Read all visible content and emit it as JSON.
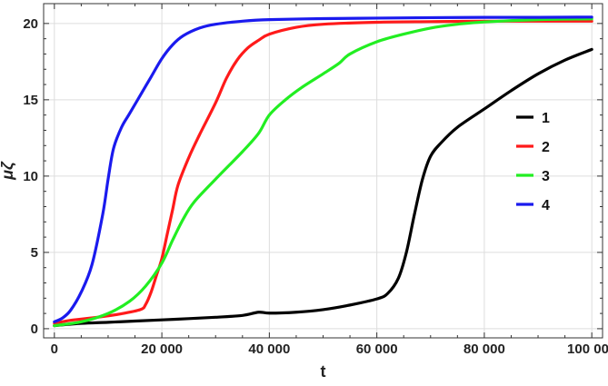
{
  "chart_data": {
    "type": "line",
    "title": "",
    "xlabel": "t",
    "ylabel": "μζ",
    "xlim": [
      -2000,
      102000
    ],
    "ylim": [
      -0.6,
      21.3
    ],
    "xticks": [
      0,
      20000,
      40000,
      60000,
      80000,
      100000
    ],
    "xtick_labels": [
      "0",
      "20 000",
      "40 000",
      "60 000",
      "80 000",
      "100 000"
    ],
    "yticks": [
      0,
      5,
      10,
      15,
      20
    ],
    "ytick_labels": [
      "0",
      "5",
      "10",
      "15",
      "20"
    ],
    "grid": true,
    "legend_position": "center-right",
    "series": [
      {
        "name": "1",
        "color": "#000000",
        "points": [
          [
            0,
            0.2
          ],
          [
            5000,
            0.35
          ],
          [
            10000,
            0.42
          ],
          [
            15000,
            0.5
          ],
          [
            20000,
            0.58
          ],
          [
            25000,
            0.66
          ],
          [
            30000,
            0.75
          ],
          [
            35000,
            0.87
          ],
          [
            38000,
            1.08
          ],
          [
            40000,
            1.02
          ],
          [
            45000,
            1.08
          ],
          [
            50000,
            1.25
          ],
          [
            55000,
            1.55
          ],
          [
            60000,
            1.95
          ],
          [
            62000,
            2.3
          ],
          [
            64000,
            3.3
          ],
          [
            65500,
            5.0
          ],
          [
            67000,
            7.5
          ],
          [
            68500,
            9.8
          ],
          [
            70000,
            11.3
          ],
          [
            72000,
            12.2
          ],
          [
            75000,
            13.2
          ],
          [
            80000,
            14.4
          ],
          [
            85000,
            15.6
          ],
          [
            90000,
            16.7
          ],
          [
            95000,
            17.6
          ],
          [
            100000,
            18.3
          ]
        ]
      },
      {
        "name": "2",
        "color": "#ff1a1a",
        "points": [
          [
            0,
            0.35
          ],
          [
            3000,
            0.55
          ],
          [
            8000,
            0.75
          ],
          [
            12000,
            0.95
          ],
          [
            16000,
            1.25
          ],
          [
            17000,
            1.6
          ],
          [
            18000,
            2.4
          ],
          [
            19000,
            3.5
          ],
          [
            20000,
            4.6
          ],
          [
            21000,
            6.2
          ],
          [
            22000,
            7.8
          ],
          [
            23000,
            9.4
          ],
          [
            25000,
            11.2
          ],
          [
            27000,
            12.7
          ],
          [
            30000,
            14.8
          ],
          [
            32000,
            16.4
          ],
          [
            34000,
            17.6
          ],
          [
            36000,
            18.4
          ],
          [
            38000,
            18.9
          ],
          [
            40000,
            19.3
          ],
          [
            45000,
            19.75
          ],
          [
            50000,
            19.95
          ],
          [
            60000,
            20.08
          ],
          [
            70000,
            20.12
          ],
          [
            80000,
            20.15
          ],
          [
            90000,
            20.15
          ],
          [
            100000,
            20.15
          ]
        ]
      },
      {
        "name": "3",
        "color": "#22ee22",
        "points": [
          [
            0,
            0.2
          ],
          [
            5000,
            0.45
          ],
          [
            10000,
            1.0
          ],
          [
            14000,
            1.8
          ],
          [
            17000,
            2.8
          ],
          [
            20000,
            4.3
          ],
          [
            22000,
            5.8
          ],
          [
            24000,
            7.2
          ],
          [
            26000,
            8.3
          ],
          [
            30000,
            9.8
          ],
          [
            35000,
            11.6
          ],
          [
            38000,
            12.8
          ],
          [
            40000,
            14.0
          ],
          [
            43000,
            15.0
          ],
          [
            46000,
            15.8
          ],
          [
            50000,
            16.7
          ],
          [
            53000,
            17.4
          ],
          [
            55000,
            18.0
          ],
          [
            60000,
            18.8
          ],
          [
            65000,
            19.3
          ],
          [
            70000,
            19.7
          ],
          [
            75000,
            19.95
          ],
          [
            80000,
            20.1
          ],
          [
            90000,
            20.25
          ],
          [
            100000,
            20.3
          ]
        ]
      },
      {
        "name": "4",
        "color": "#1a1aee",
        "points": [
          [
            0,
            0.45
          ],
          [
            1500,
            0.7
          ],
          [
            3000,
            1.2
          ],
          [
            5000,
            2.4
          ],
          [
            7000,
            4.2
          ],
          [
            9000,
            7.5
          ],
          [
            10000,
            9.8
          ],
          [
            11000,
            11.8
          ],
          [
            12500,
            13.2
          ],
          [
            14000,
            14.1
          ],
          [
            16000,
            15.3
          ],
          [
            18000,
            16.5
          ],
          [
            20000,
            17.7
          ],
          [
            22000,
            18.6
          ],
          [
            24000,
            19.2
          ],
          [
            27000,
            19.7
          ],
          [
            30000,
            19.95
          ],
          [
            35000,
            20.15
          ],
          [
            40000,
            20.25
          ],
          [
            50000,
            20.32
          ],
          [
            60000,
            20.35
          ],
          [
            70000,
            20.38
          ],
          [
            80000,
            20.4
          ],
          [
            90000,
            20.4
          ],
          [
            100000,
            20.42
          ]
        ]
      }
    ]
  }
}
